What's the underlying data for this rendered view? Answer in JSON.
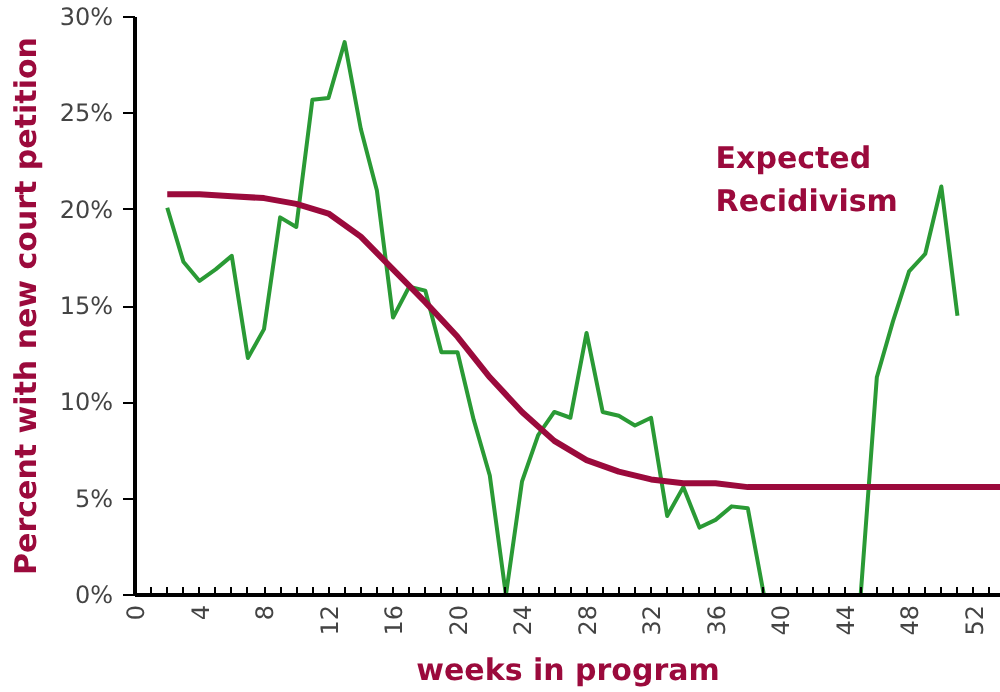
{
  "chart_data": {
    "type": "line",
    "xlabel": "weeks in program",
    "ylabel": "Percent with new court petition",
    "xlim": [
      0,
      53.7
    ],
    "ylim": [
      0,
      30
    ],
    "xticks": [
      0,
      {
        "value": 1,
        "label": null
      },
      {
        "value": 2,
        "label": null
      },
      {
        "value": 3,
        "label": null
      },
      4,
      {
        "value": 5,
        "label": null
      },
      {
        "value": 6,
        "label": null
      },
      {
        "value": 7,
        "label": null
      },
      8,
      {
        "value": 9,
        "label": null
      },
      {
        "value": 10,
        "label": null
      },
      {
        "value": 11,
        "label": null
      },
      12,
      {
        "value": 13,
        "label": null
      },
      {
        "value": 14,
        "label": null
      },
      {
        "value": 15,
        "label": null
      },
      16,
      {
        "value": 17,
        "label": null
      },
      {
        "value": 18,
        "label": null
      },
      {
        "value": 19,
        "label": null
      },
      20,
      {
        "value": 21,
        "label": null
      },
      {
        "value": 22,
        "label": null
      },
      {
        "value": 23,
        "label": null
      },
      24,
      {
        "value": 25,
        "label": null
      },
      {
        "value": 26,
        "label": null
      },
      {
        "value": 27,
        "label": null
      },
      28,
      {
        "value": 29,
        "label": null
      },
      {
        "value": 30,
        "label": null
      },
      {
        "value": 31,
        "label": null
      },
      32,
      {
        "value": 33,
        "label": null
      },
      {
        "value": 34,
        "label": null
      },
      {
        "value": 35,
        "label": null
      },
      36,
      {
        "value": 37,
        "label": null
      },
      {
        "value": 38,
        "label": null
      },
      {
        "value": 39,
        "label": null
      },
      40,
      {
        "value": 41,
        "label": null
      },
      {
        "value": 42,
        "label": null
      },
      {
        "value": 43,
        "label": null
      },
      44,
      {
        "value": 45,
        "label": null
      },
      {
        "value": 46,
        "label": null
      },
      {
        "value": 47,
        "label": null
      },
      48,
      {
        "value": 49,
        "label": null
      },
      {
        "value": 50,
        "label": null
      },
      {
        "value": 51,
        "label": null
      },
      52,
      {
        "value": 53,
        "label": null
      }
    ],
    "yticks": [
      {
        "value": 0,
        "label": "0%"
      },
      {
        "value": 5,
        "label": "5%"
      },
      {
        "value": 10,
        "label": "10%"
      },
      {
        "value": 15,
        "label": "15%"
      },
      {
        "value": 20,
        "label": "20%"
      },
      {
        "value": 25,
        "label": "25%"
      },
      {
        "value": 30,
        "label": "30%"
      }
    ],
    "grid": false,
    "legend": false,
    "marker": "none",
    "line_style": "solid",
    "series": [
      {
        "color": "#2a9a35",
        "x": [
          2,
          3,
          4,
          5,
          6,
          7,
          8,
          9,
          10,
          11,
          12,
          13,
          14,
          15,
          16,
          17,
          18,
          19,
          20,
          21,
          22,
          23,
          24,
          25,
          26,
          27,
          28,
          29,
          30,
          31,
          32,
          33,
          34,
          35,
          36,
          37,
          38,
          39,
          40,
          41,
          42,
          43,
          44,
          45,
          46,
          47,
          48,
          49,
          50,
          51
        ],
        "values": [
          20.1,
          17.3,
          16.3,
          16.9,
          17.6,
          12.3,
          13.8,
          19.6,
          19.1,
          25.7,
          25.8,
          28.7,
          24.2,
          21.0,
          14.4,
          16.0,
          15.8,
          12.6,
          12.6,
          9.1,
          6.2,
          0,
          5.9,
          8.3,
          9.5,
          9.2,
          13.6,
          9.5,
          9.3,
          8.8,
          9.2,
          4.1,
          5.6,
          3.5,
          3.9,
          4.6,
          4.5,
          0,
          0,
          0,
          0,
          0,
          0,
          0,
          11.3,
          14.2,
          16.8,
          17.7,
          21.2,
          14.5
        ]
      },
      {
        "name": "Expected Recidivism",
        "color": "#9b0a3c",
        "x": [
          2,
          4,
          6,
          8,
          10,
          12,
          14,
          16,
          18,
          20,
          22,
          24,
          26,
          28,
          30,
          32,
          34,
          36,
          38,
          40,
          44,
          48,
          53.7
        ],
        "values": [
          20.8,
          20.8,
          20.7,
          20.6,
          20.3,
          19.8,
          18.6,
          16.9,
          15.2,
          13.4,
          11.3,
          9.5,
          8.0,
          7.0,
          6.4,
          6.0,
          5.8,
          5.8,
          5.6,
          5.6,
          5.6,
          5.6,
          5.6
        ]
      }
    ]
  }
}
